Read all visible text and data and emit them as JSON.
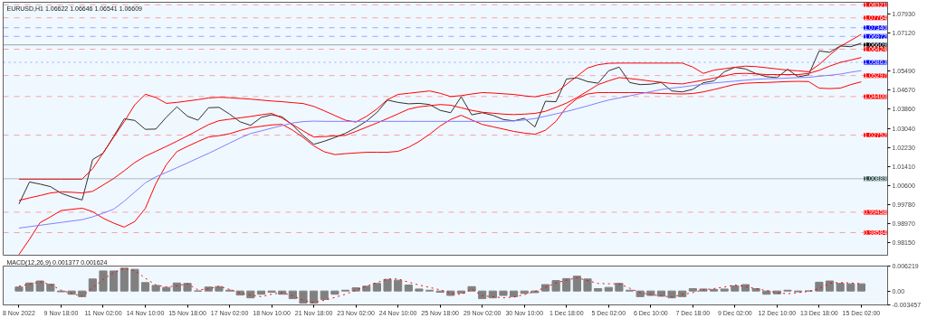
{
  "chart_data": [
    {
      "type": "line",
      "title": "EURUSD,H1  1.06622 1.06646 1.06541 1.06609",
      "tick_labels": "y",
      "ylim": [
        0.9762,
        1.0843
      ],
      "categories": [
        null,
        null,
        null,
        null,
        null,
        null,
        null,
        null,
        null,
        null,
        null,
        null,
        null,
        null,
        null,
        null,
        null,
        null,
        null,
        null,
        null,
        null,
        null,
        null,
        null,
        null,
        null,
        null,
        null,
        null,
        null,
        null,
        null,
        null,
        null,
        null,
        null,
        null,
        null,
        null,
        null,
        null,
        null,
        null,
        null,
        null,
        null,
        null,
        null,
        null,
        null,
        null,
        null,
        null,
        null,
        null,
        null,
        null,
        null,
        null,
        null,
        null,
        null,
        null,
        null,
        null,
        null,
        null,
        null,
        null,
        null,
        null,
        null,
        null,
        null,
        null,
        null,
        null,
        null,
        null,
        null,
        null
      ],
      "yticks": [
        {
          "value": 1.0793,
          "label": "1.07930"
        },
        {
          "value": 1.0712,
          "label": "1.07120"
        },
        {
          "value": 1.0549,
          "label": "1.05490"
        },
        {
          "value": 1.0467,
          "label": "1.04670"
        },
        {
          "value": 1.0386,
          "label": "1.03860"
        },
        {
          "value": 1.0304,
          "label": "1.03040"
        },
        {
          "value": 1.0223,
          "label": "1.02230"
        },
        {
          "value": 1.0141,
          "label": "1.01410"
        },
        {
          "value": 1.006,
          "label": "1.00600"
        },
        {
          "value": 0.9978,
          "label": "0.99780"
        },
        {
          "value": 0.9897,
          "label": "0.98970"
        },
        {
          "value": 0.9815,
          "label": "0.98150"
        }
      ],
      "series": [
        {
          "color": "#303030",
          "values": [
            null,
            0.9981,
            1.0075,
            1.0066,
            1.0055,
            1.0027,
            1.0011,
            0.9998,
            1.0171,
            1.0198,
            1.027,
            1.0345,
            1.0338,
            1.03,
            1.0301,
            1.0352,
            1.0396,
            1.0356,
            1.0339,
            1.0392,
            1.0394,
            1.0365,
            1.0332,
            1.0317,
            1.0351,
            1.0362,
            1.0353,
            1.0317,
            1.0273,
            1.0236,
            1.0249,
            1.0265,
            1.0283,
            1.0307,
            1.0335,
            1.0372,
            1.0425,
            1.0415,
            1.0409,
            1.0411,
            1.0406,
            1.0381,
            1.0371,
            1.0439,
            1.0362,
            1.0371,
            1.036,
            1.0342,
            1.0336,
            1.0347,
            1.031,
            1.042,
            1.0418,
            1.0515,
            1.052,
            1.0504,
            1.0497,
            1.055,
            1.0566,
            1.05,
            1.0491,
            1.0493,
            1.05,
            1.0464,
            1.046,
            1.0471,
            1.0499,
            1.0507,
            1.0546,
            1.0565,
            1.0558,
            1.0538,
            1.0525,
            1.0521,
            1.0557,
            1.0524,
            1.0533,
            1.0635,
            1.0629,
            1.0656,
            1.0653,
            1.0668
          ]
        },
        {
          "color": "#ff0000",
          "values": [
            null,
            1.0087,
            1.0087,
            1.0087,
            1.0087,
            1.0087,
            1.0087,
            1.0087,
            1.0132,
            1.02,
            1.0267,
            1.0333,
            1.0405,
            1.045,
            1.0436,
            1.0411,
            1.0415,
            1.0421,
            1.0427,
            1.0434,
            1.0437,
            1.0435,
            1.0432,
            1.0429,
            1.0425,
            1.0421,
            1.0418,
            1.0414,
            1.041,
            1.0398,
            1.0379,
            1.0359,
            1.0339,
            1.0331,
            1.0355,
            1.0387,
            1.0427,
            1.0449,
            1.0454,
            1.0459,
            1.0464,
            1.0454,
            1.044,
            1.0444,
            1.0451,
            1.0457,
            1.0455,
            1.0452,
            1.0449,
            1.0443,
            1.0439,
            1.0448,
            1.0457,
            1.0492,
            1.0527,
            1.0562,
            1.0576,
            1.0582,
            1.0583,
            1.0583,
            1.0583,
            1.0583,
            1.0583,
            1.0583,
            1.0583,
            1.0566,
            1.0539,
            1.0553,
            1.0559,
            1.0565,
            1.057,
            1.0568,
            1.0563,
            1.0558,
            1.0553,
            1.055,
            1.0546,
            1.0577,
            1.0617,
            1.0654,
            1.068,
            1.0706
          ]
        },
        {
          "color": "#ff0000",
          "values": [
            null,
            0.9996,
            1.0007,
            1.0017,
            1.0028,
            1.0033,
            1.0031,
            1.0028,
            1.0035,
            1.0062,
            1.009,
            1.0123,
            1.0158,
            1.0185,
            1.0206,
            1.0227,
            1.0249,
            1.0272,
            1.0296,
            1.032,
            1.0337,
            1.0343,
            1.0349,
            1.0355,
            1.0362,
            1.0368,
            1.0348,
            1.032,
            1.0293,
            1.0267,
            1.0269,
            1.0272,
            1.0274,
            1.0291,
            1.0309,
            1.0327,
            1.0346,
            1.0366,
            1.0386,
            1.0396,
            1.0401,
            1.0406,
            1.0403,
            1.0392,
            1.0381,
            1.0373,
            1.0369,
            1.0365,
            1.0363,
            1.0365,
            1.0368,
            1.0377,
            1.0394,
            1.0412,
            1.0436,
            1.0463,
            1.0491,
            1.0507,
            1.0521,
            1.0517,
            1.0512,
            1.0506,
            1.0501,
            1.0496,
            1.0494,
            1.0502,
            1.051,
            1.0519,
            1.0528,
            1.0538,
            1.0539,
            1.0537,
            1.0534,
            1.0534,
            1.0534,
            1.0534,
            1.0539,
            1.0552,
            1.057,
            1.0586,
            1.0596,
            1.0607
          ]
        },
        {
          "color": "#ff0000",
          "values": [
            null,
            0.9765,
            0.983,
            0.9901,
            0.9926,
            0.9953,
            0.9958,
            0.9963,
            0.9948,
            0.992,
            0.9899,
            0.9882,
            0.9906,
            0.9962,
            1.0068,
            1.0149,
            1.0205,
            1.0227,
            1.0248,
            1.0267,
            1.0273,
            1.0281,
            1.0295,
            1.0307,
            1.0313,
            1.0319,
            1.0321,
            1.0296,
            1.0265,
            1.0229,
            1.0204,
            1.0192,
            1.0196,
            1.0199,
            1.0202,
            1.0202,
            1.0202,
            1.0206,
            1.0223,
            1.0248,
            1.0279,
            1.0314,
            1.0342,
            1.036,
            1.034,
            1.0321,
            1.0311,
            1.0301,
            1.0291,
            1.0284,
            1.0279,
            1.0296,
            1.0334,
            1.0395,
            1.0431,
            1.0451,
            1.0457,
            1.0457,
            1.0457,
            1.0457,
            1.0457,
            1.0455,
            1.0453,
            1.0452,
            1.0451,
            1.0453,
            1.046,
            1.047,
            1.0481,
            1.0492,
            1.0497,
            1.0499,
            1.05,
            1.0502,
            1.0504,
            1.0505,
            1.0504,
            1.0476,
            1.0474,
            1.0476,
            1.0491,
            1.0503
          ]
        },
        {
          "color": "#7f7fff",
          "values": [
            null,
            0.9878,
            0.9884,
            0.989,
            0.9896,
            0.9902,
            0.9908,
            0.9914,
            0.9926,
            0.9942,
            0.9959,
            0.9993,
            1.0032,
            1.0071,
            1.0097,
            1.0116,
            1.0136,
            1.0156,
            1.0177,
            1.0197,
            1.0219,
            1.0241,
            1.0263,
            1.0282,
            1.0293,
            1.0305,
            1.0316,
            1.0327,
            1.0333,
            1.0335,
            1.0334,
            1.0334,
            1.0334,
            1.0334,
            1.0334,
            1.0334,
            1.0334,
            1.0334,
            1.0334,
            1.0334,
            1.0334,
            1.0334,
            1.0334,
            1.0334,
            1.0334,
            1.0334,
            1.0334,
            1.0334,
            1.0336,
            1.034,
            1.0346,
            1.0356,
            1.0366,
            1.0376,
            1.0388,
            1.04,
            1.0413,
            1.0425,
            1.0434,
            1.0443,
            1.0452,
            1.0461,
            1.047,
            1.0476,
            1.0481,
            1.0487,
            1.0493,
            1.0498,
            1.0502,
            1.0506,
            1.051,
            1.0514,
            1.0516,
            1.0517,
            1.0519,
            1.0521,
            1.0522,
            1.0527,
            1.0531,
            1.0536,
            1.0544,
            1.0551
          ]
        }
      ],
      "ref_lines": [
        {
          "axis": "y",
          "value": 1.08321,
          "label": "1.08321",
          "color": "#ff0000",
          "line_style": "dashed"
        },
        {
          "axis": "y",
          "value": 1.07764,
          "label": "1.07764",
          "color": "#ff0000",
          "line_style": "dashed"
        },
        {
          "axis": "y",
          "value": 1.0734,
          "label": "1.07340",
          "color": "#0000ff",
          "line_style": "dashed"
        },
        {
          "axis": "y",
          "value": 1.06972,
          "label": "1.06972",
          "color": "#0000ff",
          "line_style": "dashed"
        },
        {
          "axis": "y",
          "value": 1.06609,
          "label": "1.06609",
          "color": "#000000",
          "line_style": "solid"
        },
        {
          "axis": "y",
          "value": 1.06424,
          "label": "1.06424",
          "color": "#ff0000",
          "line_style": "dashed"
        },
        {
          "axis": "y",
          "value": 1.05863,
          "label": "1.05863",
          "color": "#0000ff",
          "line_style": "dotted"
        },
        {
          "axis": "y",
          "value": 1.05297,
          "label": "1.05297",
          "color": "#ff0000",
          "line_style": "dashed"
        },
        {
          "axis": "y",
          "value": 1.044,
          "label": "1.04400",
          "color": "#ff0000",
          "line_style": "dashed"
        },
        {
          "axis": "y",
          "value": 1.02752,
          "label": "1.02752",
          "color": "#ff0000",
          "line_style": "dashed"
        },
        {
          "axis": "y",
          "value": 1.00889,
          "label": "1.00889",
          "color": "#2f4f4f",
          "line_style": "solid"
        },
        {
          "axis": "y",
          "value": 0.99458,
          "label": "0.99458",
          "color": "#ff0000",
          "line_style": "dashed"
        },
        {
          "axis": "y",
          "value": 0.98584,
          "label": "0.98584",
          "color": "#ff0000",
          "line_style": "dashed"
        }
      ]
    },
    {
      "type": "bar",
      "title": "MACD(12,26,9) 0.001377 0.001624",
      "ylim": [
        -0.003457,
        0.006219
      ],
      "categories": [
        null,
        "8 Nov 2022",
        null,
        null,
        null,
        "9 Nov 18:00",
        null,
        null,
        null,
        "11 Nov 02:00",
        null,
        null,
        null,
        "14 Nov 10:00",
        null,
        null,
        null,
        "15 Nov 18:00",
        null,
        null,
        null,
        "17 Nov 02:00",
        null,
        null,
        null,
        "18 Nov 10:00",
        null,
        null,
        null,
        "21 Nov 18:00",
        null,
        null,
        null,
        "23 Nov 02:00",
        null,
        null,
        null,
        "24 Nov 10:00",
        null,
        null,
        null,
        "25 Nov 18:00",
        null,
        null,
        null,
        "29 Nov 02:00",
        null,
        null,
        null,
        "30 Nov 10:00",
        null,
        null,
        null,
        "1 Dec 18:00",
        null,
        null,
        null,
        "5 Dec 02:00",
        null,
        null,
        null,
        "6 Dec 10:00",
        null,
        null,
        null,
        "7 Dec 18:00",
        null,
        null,
        null,
        "9 Dec 02:00",
        null,
        null,
        null,
        "12 Dec 10:00",
        null,
        null,
        null,
        "13 Dec 18:00",
        null,
        null,
        null,
        "15 Dec 02:00"
      ],
      "yticks": [
        {
          "value": 0.006219,
          "label": "0.006219"
        },
        {
          "value": 0,
          "label": "0.00"
        },
        {
          "value": -0.003457,
          "label": "-0.003457"
        }
      ],
      "series": [
        {
          "type": "bar",
          "color": "#808080",
          "values": [
            null,
            0.001,
            0.002,
            0.0025,
            0.0017,
            -0.0002,
            -0.0008,
            -0.0014,
            0.003,
            0.005,
            0.005,
            0.0057,
            0.0054,
            0.0021,
            0.0014,
            0.0009,
            0.002,
            0.0019,
            0.0,
            0.001,
            0.0011,
            0.0002,
            -0.001,
            -0.0017,
            -0.0008,
            -0.0003,
            -0.0008,
            -0.0019,
            -0.003,
            -0.003,
            -0.0021,
            -0.0008,
            0.0002,
            0.0008,
            0.0012,
            0.0019,
            0.0029,
            0.0027,
            0.0015,
            0.0005,
            0.0002,
            -0.0003,
            -0.0011,
            -0.0005,
            0.0011,
            -0.0019,
            -0.0017,
            -0.0011,
            -0.0014,
            -0.0006,
            -0.0004,
            0.0016,
            0.0026,
            0.0031,
            0.0037,
            0.003,
            0.0006,
            0.0009,
            0.0019,
            0.0002,
            -0.0014,
            -0.0011,
            -0.0013,
            -0.0017,
            -0.0014,
            0.0006,
            0.0005,
            0.0004,
            0.0005,
            0.0013,
            0.0016,
            0.0006,
            -0.0008,
            -0.0007,
            0.0002,
            -0.0002,
            0.0,
            0.0022,
            0.0025,
            0.0019,
            0.0018,
            0.0018
          ]
        },
        {
          "type": "line",
          "color": "#ff0000",
          "line_style": "dotted",
          "values": [
            null,
            0.0012,
            0.0017,
            0.0023,
            0.0016,
            0.0002,
            -0.0006,
            -0.0013,
            0.0008,
            0.0029,
            0.0046,
            0.0056,
            0.0051,
            0.0032,
            0.0015,
            0.001,
            0.0013,
            0.0018,
            0.0003,
            0.0005,
            0.0012,
            0.0004,
            -0.0005,
            -0.001,
            -0.0014,
            -0.0008,
            -0.0004,
            -0.0012,
            -0.0023,
            -0.0029,
            -0.0023,
            -0.0016,
            -0.0008,
            0.0002,
            0.0012,
            0.0021,
            0.003,
            0.003,
            0.0022,
            0.0015,
            0.0009,
            0.0003,
            -0.0005,
            -0.0009,
            0.0005,
            -0.0012,
            -0.0014,
            -0.0017,
            -0.0015,
            -0.0009,
            -0.0001,
            0.0009,
            0.002,
            0.0027,
            0.0033,
            0.0026,
            0.0019,
            0.0018,
            0.0018,
            0.0007,
            -0.0004,
            -0.0009,
            -0.0012,
            -0.0015,
            -0.0009,
            -0.0004,
            0.0003,
            0.0006,
            0.001,
            0.0015,
            0.0011,
            0.0006,
            0.0001,
            -0.0004,
            -0.0007,
            -0.0004,
            -0.0001,
            0.0006,
            0.002,
            0.0021,
            0.002,
            0.0018
          ]
        }
      ]
    }
  ]
}
